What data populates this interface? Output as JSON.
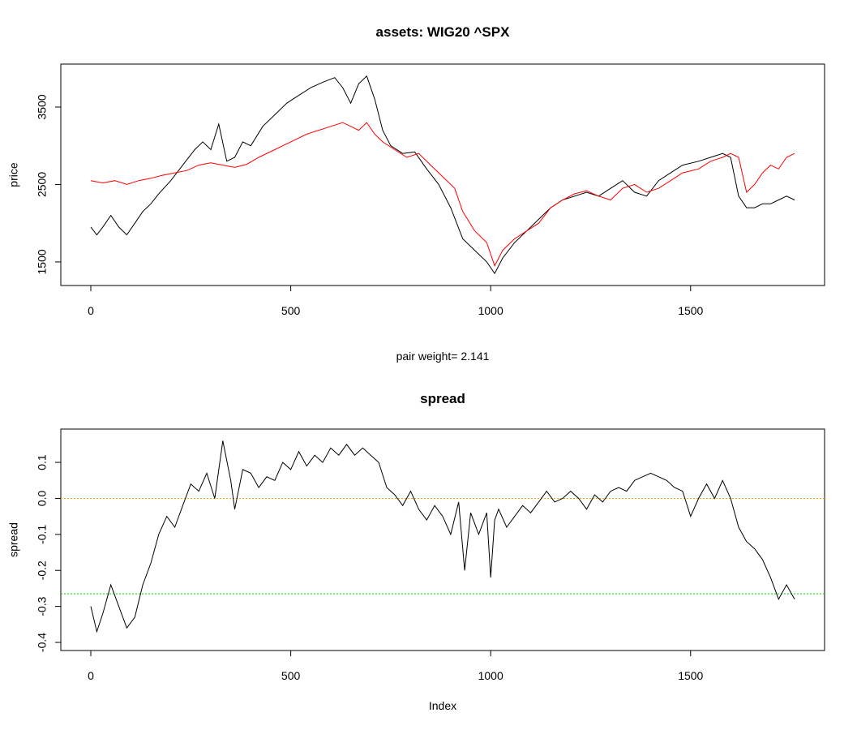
{
  "chart_data": [
    {
      "type": "line",
      "title": "assets: WIG20 ^SPX",
      "ylabel": "price",
      "xlabel": "",
      "subtitle": "pair weight= 2.141",
      "xlim": [
        0,
        1800
      ],
      "ylim": [
        1300,
        3950
      ],
      "x_ticks": [
        0,
        500,
        1000,
        1500
      ],
      "y_ticks": [
        1500,
        2500,
        3500
      ],
      "grid": false,
      "series": [
        {
          "color": "#000000",
          "x": [
            0,
            15,
            30,
            50,
            70,
            90,
            110,
            130,
            150,
            170,
            200,
            230,
            260,
            280,
            300,
            320,
            340,
            360,
            380,
            400,
            430,
            460,
            490,
            520,
            550,
            580,
            610,
            630,
            650,
            670,
            690,
            710,
            730,
            750,
            780,
            810,
            840,
            870,
            900,
            930,
            960,
            990,
            1010,
            1030,
            1060,
            1090,
            1120,
            1150,
            1180,
            1210,
            1240,
            1270,
            1300,
            1330,
            1360,
            1390,
            1420,
            1450,
            1480,
            1520,
            1550,
            1580,
            1600,
            1620,
            1640,
            1660,
            1680,
            1700,
            1720,
            1740,
            1760
          ],
          "y": [
            1950,
            1850,
            1950,
            2100,
            1950,
            1850,
            2000,
            2150,
            2250,
            2380,
            2550,
            2750,
            2950,
            3050,
            2950,
            3280,
            2800,
            2850,
            3050,
            3000,
            3250,
            3400,
            3550,
            3650,
            3750,
            3820,
            3880,
            3750,
            3550,
            3800,
            3900,
            3600,
            3200,
            3000,
            2900,
            2920,
            2700,
            2500,
            2200,
            1800,
            1650,
            1500,
            1350,
            1550,
            1750,
            1900,
            2050,
            2200,
            2300,
            2350,
            2400,
            2350,
            2450,
            2550,
            2400,
            2350,
            2550,
            2650,
            2750,
            2800,
            2850,
            2900,
            2850,
            2350,
            2200,
            2200,
            2250,
            2250,
            2300,
            2350,
            2300
          ]
        },
        {
          "color": "#ff0000",
          "x": [
            0,
            30,
            60,
            90,
            120,
            150,
            180,
            210,
            240,
            270,
            300,
            330,
            360,
            390,
            420,
            460,
            500,
            540,
            570,
            600,
            630,
            650,
            670,
            690,
            710,
            730,
            760,
            790,
            820,
            850,
            880,
            910,
            930,
            960,
            990,
            1010,
            1030,
            1060,
            1090,
            1120,
            1150,
            1180,
            1210,
            1240,
            1270,
            1300,
            1330,
            1360,
            1390,
            1420,
            1450,
            1480,
            1520,
            1550,
            1580,
            1600,
            1620,
            1640,
            1660,
            1680,
            1700,
            1720,
            1740,
            1760
          ],
          "y": [
            2550,
            2520,
            2550,
            2500,
            2550,
            2580,
            2620,
            2650,
            2680,
            2750,
            2780,
            2750,
            2720,
            2760,
            2850,
            2950,
            3050,
            3150,
            3200,
            3250,
            3300,
            3250,
            3200,
            3300,
            3150,
            3050,
            2950,
            2850,
            2900,
            2750,
            2600,
            2450,
            2150,
            1900,
            1750,
            1450,
            1650,
            1800,
            1900,
            2000,
            2200,
            2300,
            2380,
            2420,
            2350,
            2300,
            2450,
            2500,
            2400,
            2450,
            2550,
            2650,
            2700,
            2800,
            2850,
            2900,
            2850,
            2400,
            2500,
            2650,
            2750,
            2700,
            2850,
            2900
          ]
        }
      ]
    },
    {
      "type": "line",
      "title": "spread",
      "ylabel": "spread",
      "xlabel": "Index",
      "xlim": [
        0,
        1800
      ],
      "ylim": [
        -0.4,
        0.17
      ],
      "x_ticks": [
        0,
        500,
        1000,
        1500
      ],
      "y_ticks": [
        -0.4,
        -0.3,
        -0.2,
        -0.1,
        0.0,
        0.1
      ],
      "grid": false,
      "hlines": [
        {
          "y": 0.0,
          "color": "#ffa500"
        },
        {
          "y": -0.265,
          "color": "#00cc00"
        }
      ],
      "series": [
        {
          "color": "#000000",
          "x": [
            0,
            15,
            30,
            50,
            70,
            90,
            110,
            130,
            150,
            170,
            190,
            210,
            230,
            250,
            270,
            290,
            310,
            330,
            350,
            360,
            380,
            400,
            420,
            440,
            460,
            480,
            500,
            520,
            540,
            560,
            580,
            600,
            620,
            640,
            660,
            680,
            700,
            720,
            740,
            760,
            780,
            800,
            820,
            840,
            860,
            880,
            900,
            920,
            935,
            950,
            970,
            990,
            1000,
            1010,
            1020,
            1040,
            1060,
            1080,
            1100,
            1120,
            1140,
            1160,
            1180,
            1200,
            1220,
            1240,
            1260,
            1280,
            1300,
            1320,
            1340,
            1360,
            1380,
            1400,
            1420,
            1440,
            1460,
            1480,
            1500,
            1520,
            1540,
            1560,
            1580,
            1600,
            1620,
            1640,
            1660,
            1680,
            1700,
            1720,
            1740,
            1760
          ],
          "y": [
            -0.3,
            -0.37,
            -0.32,
            -0.24,
            -0.3,
            -0.36,
            -0.33,
            -0.24,
            -0.18,
            -0.1,
            -0.05,
            -0.08,
            -0.02,
            0.04,
            0.02,
            0.07,
            0.0,
            0.16,
            0.05,
            -0.03,
            0.08,
            0.07,
            0.03,
            0.06,
            0.05,
            0.1,
            0.08,
            0.13,
            0.09,
            0.12,
            0.1,
            0.14,
            0.12,
            0.15,
            0.12,
            0.14,
            0.12,
            0.1,
            0.03,
            0.01,
            -0.02,
            0.02,
            -0.03,
            -0.06,
            -0.02,
            -0.05,
            -0.1,
            -0.01,
            -0.2,
            -0.04,
            -0.1,
            -0.04,
            -0.22,
            -0.06,
            -0.03,
            -0.08,
            -0.05,
            -0.02,
            -0.04,
            -0.01,
            0.02,
            -0.01,
            0.0,
            0.02,
            0.0,
            -0.03,
            0.01,
            -0.01,
            0.02,
            0.03,
            0.02,
            0.05,
            0.06,
            0.07,
            0.06,
            0.05,
            0.03,
            0.02,
            -0.05,
            0.0,
            0.04,
            0.0,
            0.05,
            0.0,
            -0.08,
            -0.12,
            -0.14,
            -0.17,
            -0.22,
            -0.28,
            -0.24,
            -0.28
          ]
        }
      ]
    }
  ]
}
